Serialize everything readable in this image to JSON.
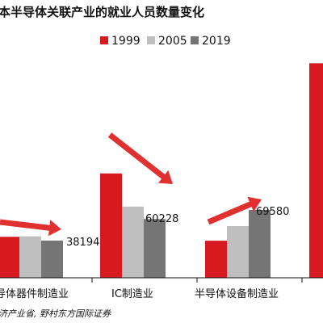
{
  "chart_data": {
    "type": "bar",
    "title": "本半导体关联产业的就业人员数量变化",
    "categories": [
      "导体器件制造业",
      "IC制造业",
      "半导体设备制造业",
      ""
    ],
    "series": [
      {
        "name": "1999",
        "values": [
          42000,
          107000,
          38000,
          220000
        ]
      },
      {
        "name": "2005",
        "values": [
          42500,
          73000,
          53000,
          null
        ]
      },
      {
        "name": "2019",
        "values": [
          38194,
          60228,
          69580,
          null
        ]
      }
    ],
    "value_labels": [
      "38194",
      "60228",
      "69580"
    ],
    "ylim": [
      0,
      260000
    ],
    "grid": false,
    "legend_position": "top-right",
    "colors": {
      "1999": "#d71920",
      "2005": "#bfbfbf",
      "2019": "#757575"
    },
    "arrow_color": "#e03030",
    "source": "济产业省, 野村东方国际证券"
  }
}
